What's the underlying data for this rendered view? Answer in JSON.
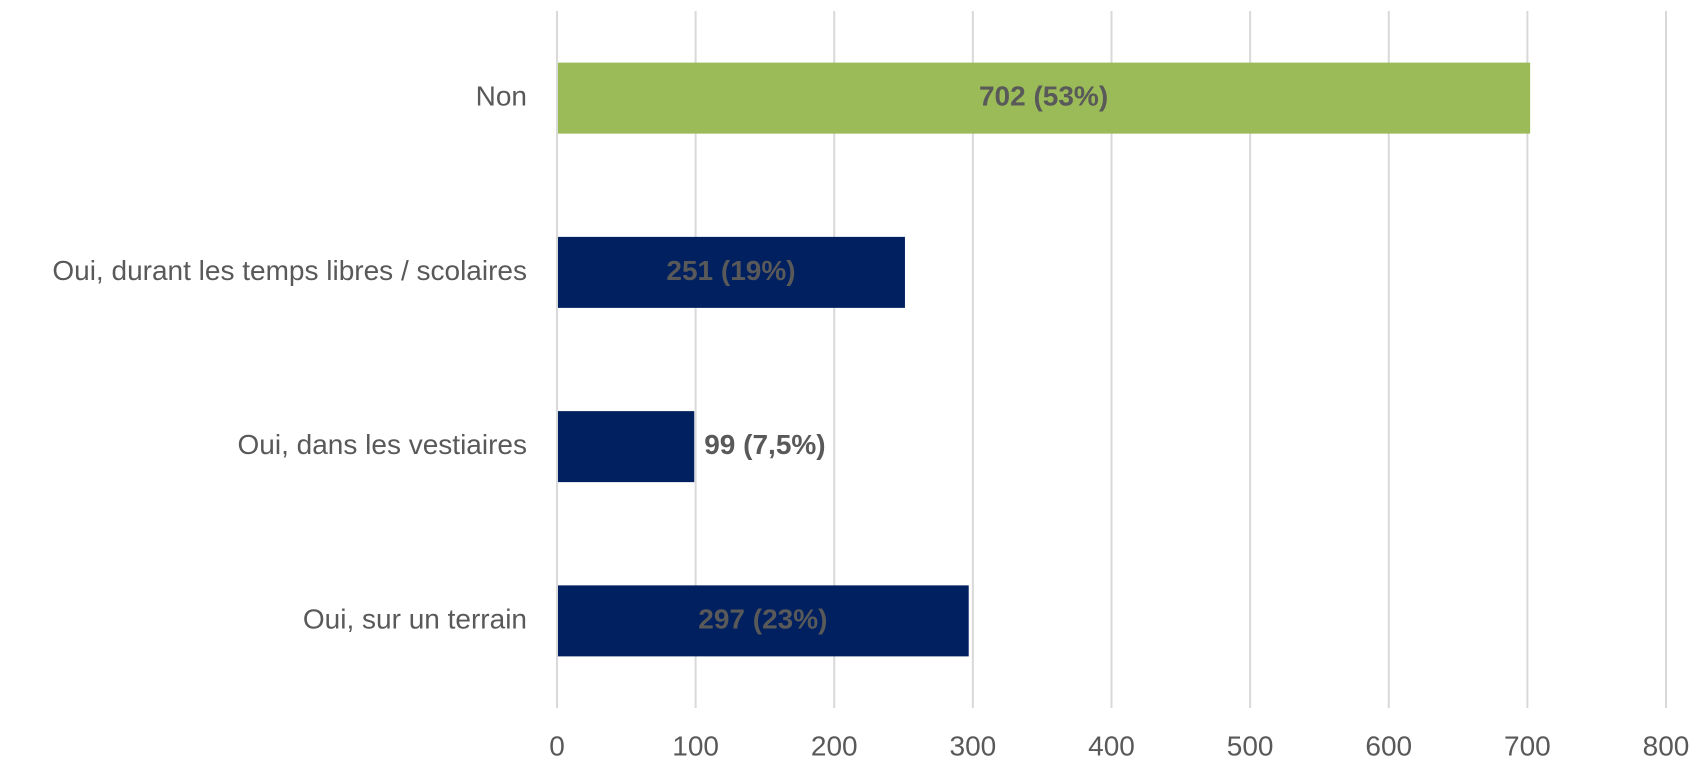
{
  "chart_data": {
    "type": "hbar",
    "categories": [
      "Non",
      "Oui, durant les temps libres / scolaires",
      "Oui, dans les vestiaires",
      "Oui, sur un terrain"
    ],
    "values": [
      702,
      251,
      99,
      297
    ],
    "value_labels": [
      "702 (53%)",
      "251 (19%)",
      "99 (7,5%)",
      "297 (23%)"
    ],
    "colors": [
      "#9bbb59",
      "#002060",
      "#002060",
      "#002060"
    ],
    "xlim": [
      0,
      800
    ],
    "xticks": [
      0,
      100,
      200,
      300,
      400,
      500,
      600,
      700,
      800
    ],
    "grid": true
  }
}
